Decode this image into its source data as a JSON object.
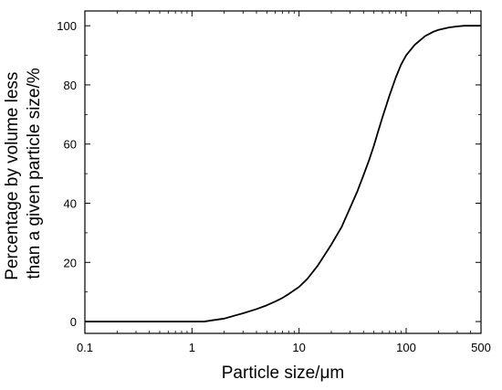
{
  "chart_data": {
    "type": "line",
    "xlabel": "Particle size/μm",
    "ylabel_lines": [
      "Percentage by volume less",
      "than a given particle size/%"
    ],
    "xscale": "log",
    "xlim": [
      0.1,
      500
    ],
    "ylim": [
      -4,
      105
    ],
    "xticks": [
      0.1,
      1,
      10,
      100,
      500
    ],
    "xtick_labels": [
      "0.1",
      "1",
      "10",
      "100",
      "500"
    ],
    "yticks": [
      0,
      20,
      40,
      60,
      80,
      100
    ],
    "ytick_labels": [
      "0",
      "20",
      "40",
      "60",
      "80",
      "100"
    ],
    "grid": false,
    "line_color": "#000000",
    "series": [
      {
        "x": [
          0.1,
          0.5,
          1.0,
          1.3,
          1.6,
          2.0,
          2.5,
          3.0,
          4.0,
          5.0,
          6.0,
          7.0,
          8.0,
          10.0,
          12.0,
          15.0,
          20.0,
          25.0,
          30.0,
          35.0,
          40.0,
          45.0,
          50.0,
          55.0,
          60.0,
          70.0,
          80.0,
          90.0,
          100.0,
          120.0,
          150.0,
          180.0,
          200.0,
          250.0,
          300.0,
          350.0,
          400.0,
          500.0
        ],
        "y": [
          0,
          0,
          0,
          0,
          0.5,
          1.0,
          2.0,
          2.8,
          4.2,
          5.5,
          6.8,
          8.0,
          9.3,
          11.7,
          14.5,
          19.0,
          26.0,
          32.0,
          38.5,
          44.0,
          49.5,
          54.5,
          59.5,
          64.5,
          69.0,
          76.5,
          82.5,
          87.0,
          90.0,
          93.5,
          96.5,
          98.0,
          98.6,
          99.4,
          99.8,
          100,
          100,
          100
        ]
      }
    ]
  }
}
